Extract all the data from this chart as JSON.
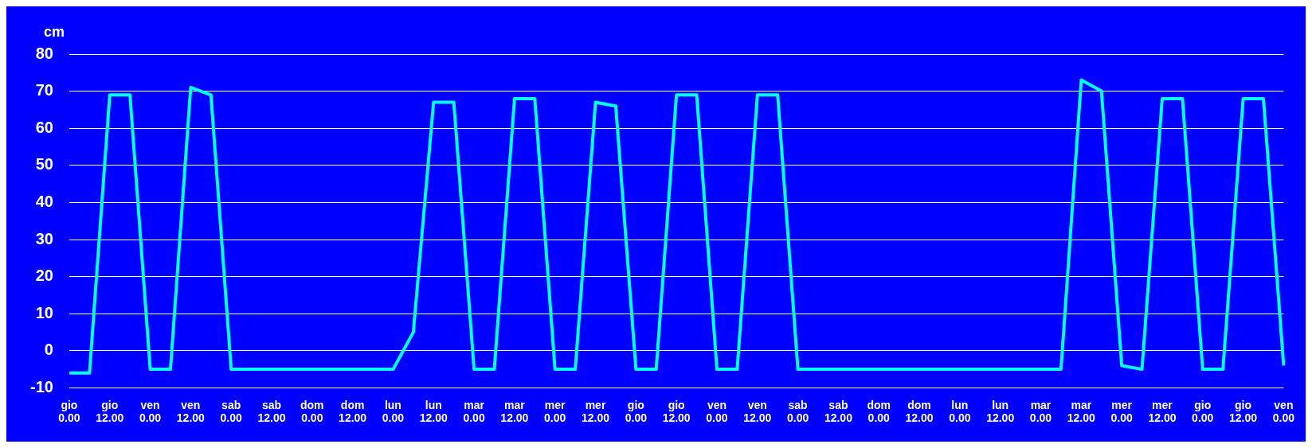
{
  "chart_data": {
    "type": "line",
    "ylabel": "cm",
    "categories": [
      "gio\n0.00",
      null,
      "gio\n12.00",
      null,
      "ven\n0.00",
      null,
      "ven\n12.00",
      null,
      "sab\n0.00",
      null,
      "sab\n12.00",
      null,
      "dom\n0.00",
      null,
      "dom\n12.00",
      null,
      "lun\n0.00",
      null,
      "lun\n12.00",
      null,
      "mar\n0.00",
      null,
      "mar\n12.00",
      null,
      "mer\n0.00",
      null,
      "mer\n12.00",
      null,
      "gio\n0.00",
      null,
      "gio\n12.00",
      null,
      "ven\n0.00",
      null,
      "ven\n12.00",
      null,
      "sab\n0.00",
      null,
      "sab\n12.00",
      null,
      "dom\n0.00",
      null,
      "dom\n12.00",
      null,
      "lun\n0.00",
      null,
      "lun\n12.00",
      null,
      "mar\n0.00",
      null,
      "mar\n12.00",
      null,
      "mer\n0.00",
      null,
      "mer\n12.00",
      null,
      "gio\n0.00",
      null,
      "gio\n12.00",
      null,
      "ven\n0.00"
    ],
    "series": [
      {
        "color": "#00ffff",
        "values": [
          -6,
          -6,
          69,
          69,
          -5,
          -5,
          71,
          69,
          -5,
          -5,
          -5,
          -5,
          -5,
          -5,
          -5,
          -5,
          -5,
          5,
          67,
          67,
          -5,
          -5,
          68,
          68,
          -5,
          -5,
          67,
          66,
          -5,
          -5,
          69,
          69,
          -5,
          -5,
          69,
          69,
          -5,
          -5,
          -5,
          -5,
          -5,
          -5,
          -5,
          -5,
          -5,
          -5,
          -5,
          -5,
          -5,
          -5,
          73,
          70,
          -4,
          -5,
          68,
          68,
          -5,
          -5,
          68,
          68,
          -4
        ]
      }
    ],
    "ylim": [
      -10,
      80
    ],
    "yticks": [
      -10,
      0,
      10,
      20,
      30,
      40,
      50,
      60,
      70,
      80
    ],
    "grid": "y",
    "legend": false,
    "marker": "none",
    "line_style": "solid"
  }
}
